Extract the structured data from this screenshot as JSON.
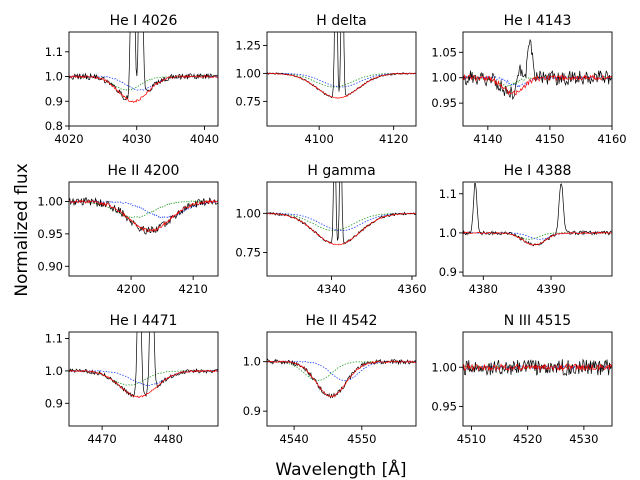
{
  "figure": {
    "xlabel": "Wavelength [$\\AA$]",
    "xlabel_display": "Wavelength [Å]",
    "ylabel": "Normalized flux"
  },
  "series_colors": {
    "observed": "#000000",
    "model_total": "#ff0000",
    "component_1": "#2ca02c",
    "component_2": "#1f3fff"
  },
  "chart_data": [
    {
      "type": "line",
      "title": "He I 4026",
      "xlim": [
        4020,
        4042
      ],
      "ylim": [
        0.8,
        1.18
      ],
      "xticks": [
        4020,
        4030,
        4040
      ],
      "yticks": [
        0.8,
        0.9,
        1.0,
        1.1
      ],
      "xtick_labels": [
        "4020",
        "4030",
        "4040"
      ],
      "ytick_labels": [
        "0.8",
        "0.9",
        "1.0",
        "1.1"
      ],
      "profile": {
        "center": 4029.5,
        "width": 2.0,
        "depth": 0.1,
        "shift": 1.0,
        "noise": 0.015,
        "emission": [
          {
            "x": 4029.4,
            "h": 0.9,
            "w": 0.25
          },
          {
            "x": 4030.6,
            "h": 0.9,
            "w": 0.25
          }
        ]
      }
    },
    {
      "type": "line",
      "title": "H delta",
      "xlim": [
        4086,
        4126
      ],
      "ylim": [
        0.53,
        1.37
      ],
      "xticks": [
        4100,
        4120
      ],
      "yticks": [
        0.75,
        1.0,
        1.25
      ],
      "xtick_labels": [
        "4100",
        "4120"
      ],
      "ytick_labels": [
        "0.75",
        "1.00",
        "1.25"
      ],
      "profile": {
        "center": 4105,
        "width": 5.0,
        "depth": 0.22,
        "shift": 1.0,
        "noise": 0.01,
        "emission": [
          {
            "x": 4104.5,
            "h": 1.5,
            "w": 0.3
          },
          {
            "x": 4106.2,
            "h": 1.5,
            "w": 0.3
          }
        ]
      }
    },
    {
      "type": "line",
      "title": "He I 4143",
      "xlim": [
        4136,
        4160
      ],
      "ylim": [
        0.905,
        1.09
      ],
      "xticks": [
        4140,
        4150,
        4160
      ],
      "yticks": [
        0.95,
        1.0,
        1.05
      ],
      "xtick_labels": [
        "4140",
        "4150",
        "4160"
      ],
      "ytick_labels": [
        "0.95",
        "1.00",
        "1.05"
      ],
      "profile": {
        "center": 4144,
        "width": 1.5,
        "depth": 0.03,
        "shift": 1.0,
        "noise": 0.018,
        "emission": [
          {
            "x": 4145.2,
            "h": 0.04,
            "w": 0.4
          },
          {
            "x": 4146.8,
            "h": 0.075,
            "w": 0.4
          }
        ]
      }
    },
    {
      "type": "line",
      "title": "He II 4200",
      "xlim": [
        4190,
        4214
      ],
      "ylim": [
        0.885,
        1.03
      ],
      "xticks": [
        4200,
        4210
      ],
      "yticks": [
        0.9,
        0.95,
        1.0
      ],
      "xtick_labels": [
        "4200",
        "4210"
      ],
      "ytick_labels": [
        "0.90",
        "0.95",
        "1.00"
      ],
      "profile": {
        "center": 4203,
        "width": 3.0,
        "depth": 0.045,
        "shift": 2.5,
        "noise": 0.008,
        "emission": []
      }
    },
    {
      "type": "line",
      "title": "H gamma",
      "xlim": [
        4324,
        4361
      ],
      "ylim": [
        0.6,
        1.2
      ],
      "xticks": [
        4340,
        4360
      ],
      "yticks": [
        0.75,
        1.0
      ],
      "xtick_labels": [
        "4340",
        "4360"
      ],
      "ytick_labels": [
        "0.75",
        "1.00"
      ],
      "profile": {
        "center": 4341.5,
        "width": 5.0,
        "depth": 0.2,
        "shift": 1.0,
        "noise": 0.01,
        "emission": [
          {
            "x": 4340.8,
            "h": 0.8,
            "w": 0.25
          },
          {
            "x": 4342.3,
            "h": 0.8,
            "w": 0.25
          }
        ]
      }
    },
    {
      "type": "line",
      "title": "He I 4388",
      "xlim": [
        4377,
        4399
      ],
      "ylim": [
        0.89,
        1.13
      ],
      "xticks": [
        4380,
        4390
      ],
      "yticks": [
        0.9,
        1.0,
        1.1
      ],
      "xtick_labels": [
        "4380",
        "4390"
      ],
      "ytick_labels": [
        "0.9",
        "1.0",
        "1.1"
      ],
      "profile": {
        "center": 4387.5,
        "width": 1.5,
        "depth": 0.03,
        "shift": 0.8,
        "noise": 0.006,
        "emission": [
          {
            "x": 4378.8,
            "h": 0.13,
            "w": 0.25
          },
          {
            "x": 4391.5,
            "h": 0.13,
            "w": 0.3
          }
        ]
      }
    },
    {
      "type": "line",
      "title": "He I 4471",
      "xlim": [
        4465,
        4487.5
      ],
      "ylim": [
        0.83,
        1.12
      ],
      "xticks": [
        4470,
        4480
      ],
      "yticks": [
        0.9,
        1.0,
        1.1
      ],
      "xtick_labels": [
        "4470",
        "4480"
      ],
      "ytick_labels": [
        "0.9",
        "1.0",
        "1.1"
      ],
      "profile": {
        "center": 4475.5,
        "width": 2.5,
        "depth": 0.08,
        "shift": 1.5,
        "noise": 0.008,
        "emission": [
          {
            "x": 4475.6,
            "h": 0.5,
            "w": 0.25
          },
          {
            "x": 4477.5,
            "h": 0.5,
            "w": 0.25
          }
        ]
      }
    },
    {
      "type": "line",
      "title": "He II 4542",
      "xlim": [
        4536,
        4558
      ],
      "ylim": [
        0.87,
        1.06
      ],
      "xticks": [
        4540,
        4550
      ],
      "yticks": [
        0.9,
        1.0
      ],
      "xtick_labels": [
        "4540",
        "4550"
      ],
      "ytick_labels": [
        "0.9",
        "1.0"
      ],
      "profile": {
        "center": 4545.5,
        "width": 2.0,
        "depth": 0.07,
        "shift": 2.0,
        "noise": 0.006,
        "emission": []
      }
    },
    {
      "type": "line",
      "title": "N III 4515",
      "xlim": [
        4508.5,
        4535
      ],
      "ylim": [
        0.925,
        1.045
      ],
      "xticks": [
        4510,
        4520,
        4530
      ],
      "yticks": [
        0.95,
        1.0
      ],
      "xtick_labels": [
        "4510",
        "4520",
        "4530"
      ],
      "ytick_labels": [
        "0.95",
        "1.00"
      ],
      "profile": {
        "center": 4521,
        "width": 1.0,
        "depth": 0.0,
        "shift": 0.5,
        "noise": 0.013,
        "emission": []
      }
    }
  ]
}
